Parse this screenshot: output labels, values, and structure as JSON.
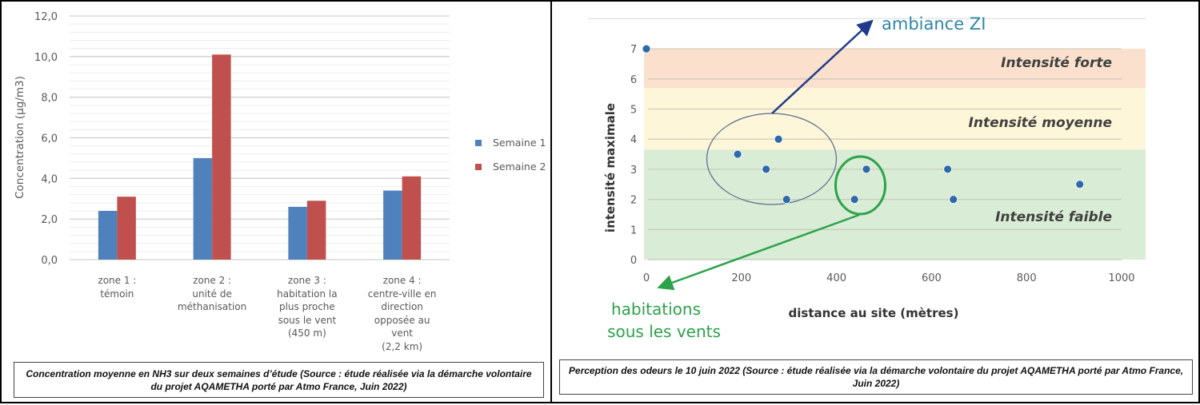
{
  "chart_data": [
    {
      "type": "bar",
      "title": "",
      "xlabel": "",
      "ylabel": "Concentration (µg/m3)",
      "ylim": [
        0,
        12
      ],
      "y_major_step": 2,
      "y_minor_step": 0.4,
      "y_tick_labels": [
        "0,0",
        "2,0",
        "4,0",
        "6,0",
        "8,0",
        "10,0",
        "12,0"
      ],
      "grid": true,
      "legend_position": "right",
      "categories": [
        "zone 1 :\ntémoin",
        "zone 2 :\nunité de\nméthanisation",
        "zone 3 :\nhabitation la\nplus proche\nsous le vent\n(450 m)",
        "zone 4 :\ncentre-ville en\ndirection\nopposée au\nvent\n(2,2 km)"
      ],
      "series": [
        {
          "name": "Semaine 1",
          "color": "#4f81bd",
          "values": [
            2.4,
            5.0,
            2.6,
            3.4
          ]
        },
        {
          "name": "Semaine 2",
          "color": "#c0504d",
          "values": [
            3.1,
            10.1,
            2.9,
            4.1
          ]
        }
      ],
      "caption": "Concentration moyenne en NH3 sur deux semaines d’étude  (Source : étude réalisée via la démarche volontaire du projet AQAMETHA porté par Atmo France, Juin 2022)"
    },
    {
      "type": "scatter",
      "title": "",
      "xlabel": "distance au site (mètres)",
      "ylabel": "intensité maximale",
      "xlim": [
        0,
        1000
      ],
      "ylim": [
        0,
        8
      ],
      "x_ticks": [
        0,
        200,
        400,
        600,
        800,
        1000
      ],
      "y_ticks": [
        0,
        1,
        2,
        3,
        4,
        5,
        6,
        7
      ],
      "grid": true,
      "point_color": "#2e6aa8",
      "points": [
        {
          "x": 0,
          "y": 7
        },
        {
          "x": 192,
          "y": 3.5
        },
        {
          "x": 252,
          "y": 3
        },
        {
          "x": 278,
          "y": 4
        },
        {
          "x": 295,
          "y": 2
        },
        {
          "x": 438,
          "y": 2
        },
        {
          "x": 463,
          "y": 3
        },
        {
          "x": 634,
          "y": 3
        },
        {
          "x": 646,
          "y": 2
        },
        {
          "x": 912,
          "y": 2.5
        }
      ],
      "bands": [
        {
          "label": "Intensité forte",
          "from": 5.7,
          "to": 7,
          "color": "#fbe1cd"
        },
        {
          "label": "Intensité moyenne",
          "from": 3.65,
          "to": 5.7,
          "color": "#fdf6d8"
        },
        {
          "label": "Intensité faible",
          "from": 0,
          "to": 3.65,
          "color": "#d9ecd5"
        }
      ],
      "annotations": [
        {
          "label": "ambiance ZI",
          "color": "#2e86a8",
          "arrow_color": "#1f3a8c",
          "encircled_points": [
            192,
            252,
            278,
            295
          ]
        },
        {
          "label": "habitations\nsous les vents",
          "color": "#2ca24a",
          "arrow_color": "#2ca24a",
          "encircled_points": [
            438,
            463
          ]
        }
      ],
      "caption": "Perception des odeurs le 10 juin 2022 (Source : étude réalisée via la démarche volontaire du projet AQAMETHA porté par Atmo France, Juin 2022)"
    }
  ]
}
